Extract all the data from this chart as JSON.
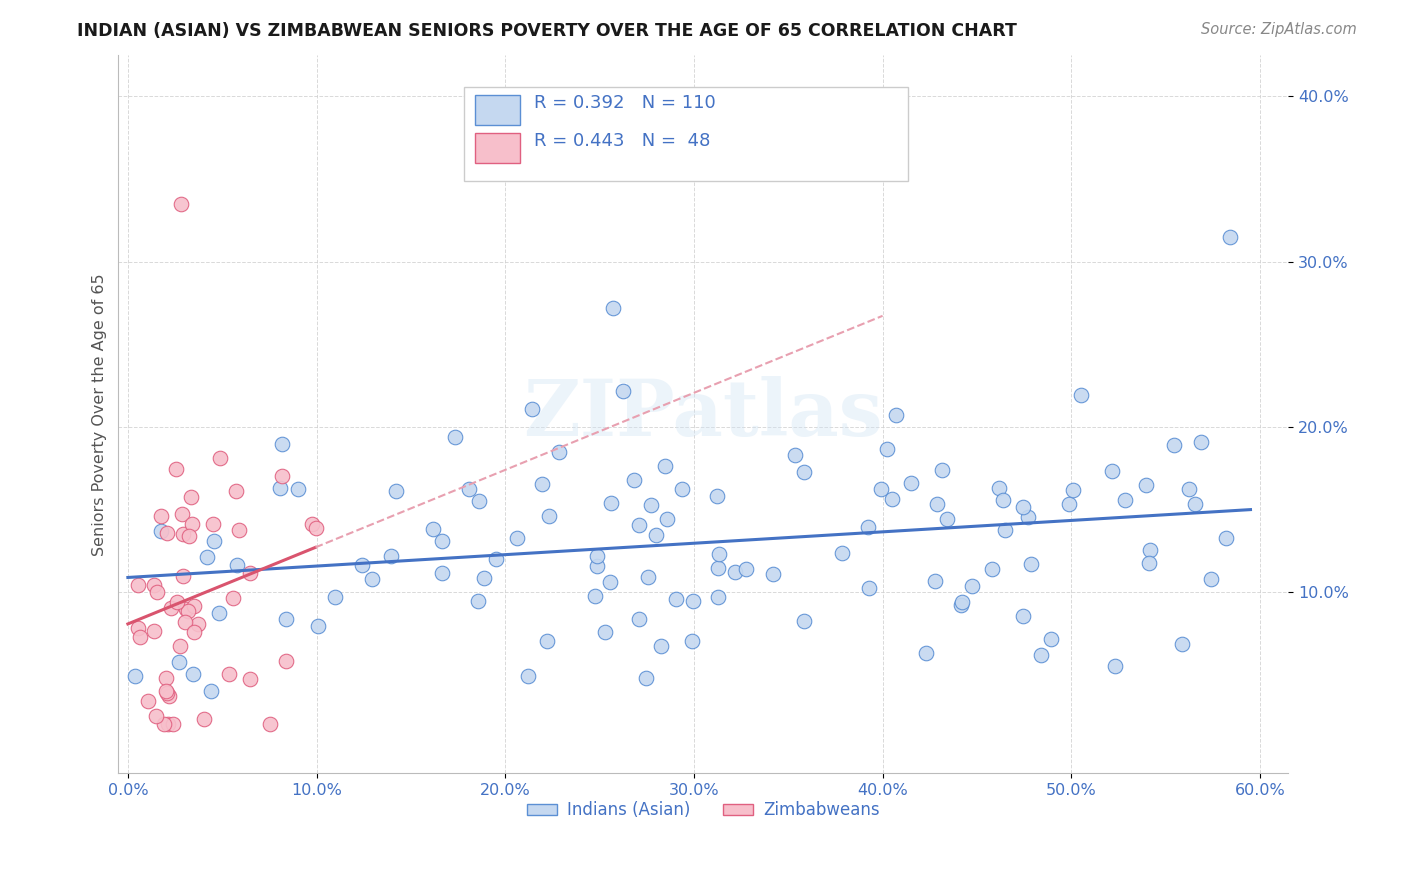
{
  "title": "INDIAN (ASIAN) VS ZIMBABWEAN SENIORS POVERTY OVER THE AGE OF 65 CORRELATION CHART",
  "source": "Source: ZipAtlas.com",
  "ylabel": "Seniors Poverty Over the Age of 65",
  "xlim": [
    -0.005,
    0.615
  ],
  "ylim": [
    -0.01,
    0.425
  ],
  "xticks": [
    0.0,
    0.1,
    0.2,
    0.3,
    0.4,
    0.5,
    0.6
  ],
  "xticklabels": [
    "0.0%",
    "10.0%",
    "20.0%",
    "30.0%",
    "40.0%",
    "50.0%",
    "60.0%"
  ],
  "yticks": [
    0.1,
    0.2,
    0.3,
    0.4
  ],
  "yticklabels": [
    "10.0%",
    "20.0%",
    "30.0%",
    "40.0%"
  ],
  "indian_fill": "#c5d8f0",
  "indian_edge": "#5b8fd4",
  "zimb_fill": "#f7bfcb",
  "zimb_edge": "#e06080",
  "indian_line_color": "#4472c4",
  "zimb_line_color": "#d9546e",
  "zimb_line_dashed_color": "#e8a0b0",
  "indian_R": 0.392,
  "indian_N": 110,
  "zimb_R": 0.443,
  "zimb_N": 48,
  "legend_indian": "Indians (Asian)",
  "legend_zimb": "Zimbabweans",
  "watermark": "ZIPatlas",
  "bg": "#ffffff",
  "grid_color": "#d0d0d0",
  "title_color": "#1a1a1a",
  "ylabel_color": "#555555",
  "tick_color": "#4472c4",
  "source_color": "#888888",
  "legend_R_color": "#4472c4"
}
